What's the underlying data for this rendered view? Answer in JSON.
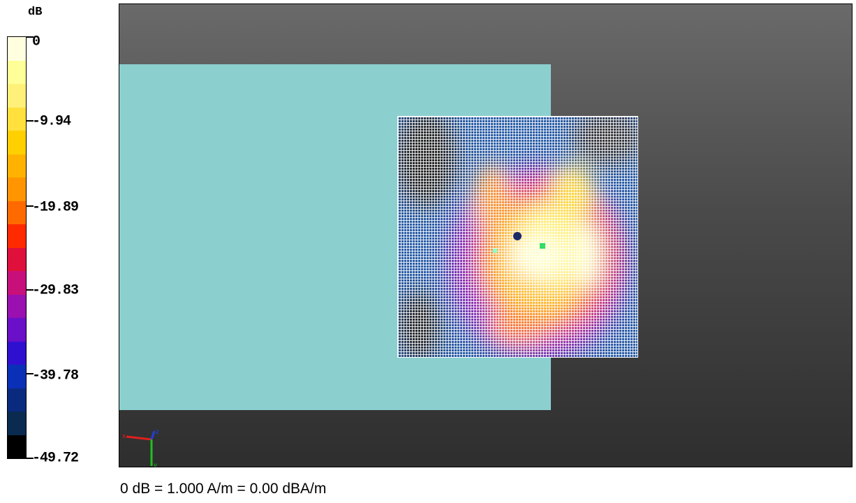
{
  "scale": {
    "unit": "dB",
    "ticks": [
      "0",
      "-9.94",
      "-19.89",
      "-29.83",
      "-39.78",
      "-49.72"
    ],
    "bands": [
      "#ffffe0",
      "#ffff99",
      "#fff07a",
      "#ffe03c",
      "#ffd000",
      "#ffb300",
      "#ff9500",
      "#ff6a00",
      "#ff2a00",
      "#e0103c",
      "#c8107a",
      "#9a10b0",
      "#6a10c8",
      "#3010d0",
      "#0a30b8",
      "#0a2a80",
      "#0a2a50",
      "#000000"
    ]
  },
  "viewport": {
    "axes": {
      "x": "x",
      "y": "y",
      "z": "z"
    }
  },
  "caption": "0 dB = 1.000 A/m = 0.00 dBA/m"
}
